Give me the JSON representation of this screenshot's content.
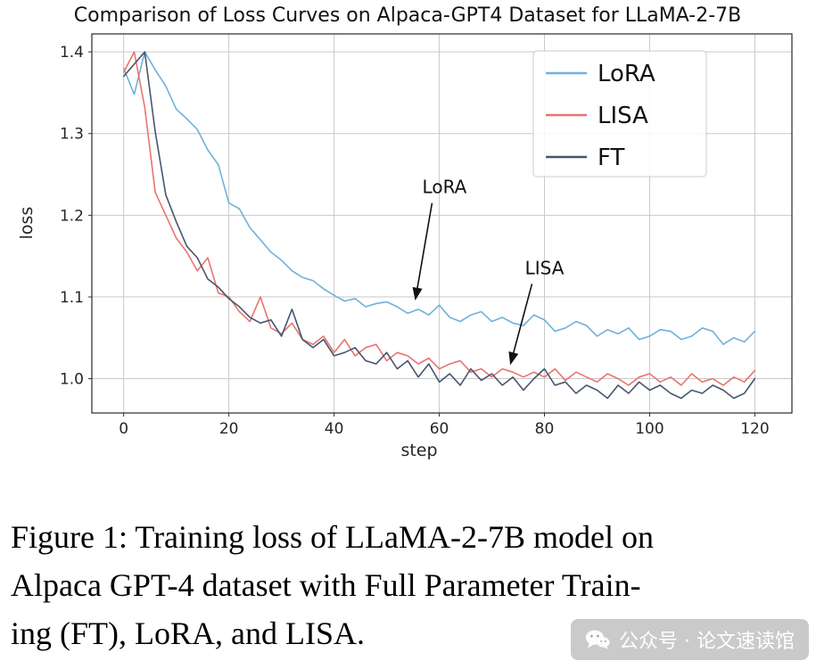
{
  "chart_data": {
    "type": "line",
    "title": "Comparison of Loss Curves on Alpaca-GPT4 Dataset for LLaMA-2-7B",
    "xlabel": "step",
    "ylabel": "loss",
    "xlim": [
      -6.05,
      127.05
    ],
    "ylim": [
      0.958,
      1.422
    ],
    "xticks": [
      0,
      20,
      40,
      60,
      80,
      100,
      120
    ],
    "yticks": [
      1.0,
      1.1,
      1.2,
      1.3,
      1.4
    ],
    "grid": true,
    "legend_position": "upper right",
    "x": [
      0,
      2,
      4,
      6,
      8,
      10,
      12,
      14,
      16,
      18,
      20,
      22,
      24,
      26,
      28,
      30,
      32,
      34,
      36,
      38,
      40,
      42,
      44,
      46,
      48,
      50,
      52,
      54,
      56,
      58,
      60,
      62,
      64,
      66,
      68,
      70,
      72,
      74,
      76,
      78,
      80,
      82,
      84,
      86,
      88,
      90,
      92,
      94,
      96,
      98,
      100,
      102,
      104,
      106,
      108,
      110,
      112,
      114,
      116,
      118,
      120
    ],
    "series": [
      {
        "name": "LoRA",
        "color": "#6fb1d9",
        "values": [
          1.38,
          1.348,
          1.4,
          1.378,
          1.358,
          1.33,
          1.318,
          1.305,
          1.28,
          1.262,
          1.215,
          1.208,
          1.185,
          1.17,
          1.155,
          1.145,
          1.132,
          1.124,
          1.12,
          1.11,
          1.102,
          1.095,
          1.098,
          1.088,
          1.092,
          1.094,
          1.088,
          1.08,
          1.085,
          1.078,
          1.09,
          1.075,
          1.07,
          1.078,
          1.082,
          1.07,
          1.075,
          1.068,
          1.065,
          1.078,
          1.072,
          1.058,
          1.062,
          1.07,
          1.065,
          1.052,
          1.06,
          1.055,
          1.062,
          1.048,
          1.052,
          1.06,
          1.058,
          1.048,
          1.052,
          1.062,
          1.058,
          1.042,
          1.05,
          1.045,
          1.058
        ]
      },
      {
        "name": "LISA",
        "color": "#e8756d",
        "values": [
          1.375,
          1.4,
          1.332,
          1.228,
          1.2,
          1.172,
          1.155,
          1.132,
          1.148,
          1.105,
          1.1,
          1.082,
          1.07,
          1.1,
          1.062,
          1.055,
          1.068,
          1.048,
          1.042,
          1.052,
          1.032,
          1.048,
          1.028,
          1.038,
          1.042,
          1.022,
          1.032,
          1.028,
          1.018,
          1.025,
          1.012,
          1.018,
          1.022,
          1.008,
          1.012,
          1.002,
          1.012,
          1.008,
          1.002,
          1.008,
          1.002,
          1.012,
          0.998,
          1.008,
          1.002,
          0.996,
          1.006,
          1.0,
          0.992,
          1.002,
          1.006,
          0.996,
          1.002,
          0.992,
          1.006,
          0.996,
          1.0,
          0.992,
          1.002,
          0.996,
          1.01
        ]
      },
      {
        "name": "FT",
        "color": "#47566e",
        "values": [
          1.37,
          1.385,
          1.4,
          1.302,
          1.225,
          1.192,
          1.162,
          1.148,
          1.122,
          1.112,
          1.098,
          1.088,
          1.075,
          1.068,
          1.072,
          1.052,
          1.085,
          1.048,
          1.038,
          1.048,
          1.028,
          1.032,
          1.038,
          1.022,
          1.018,
          1.032,
          1.012,
          1.022,
          1.002,
          1.018,
          0.996,
          1.006,
          0.992,
          1.012,
          0.998,
          1.006,
          0.992,
          1.002,
          0.986,
          1.0,
          1.012,
          0.992,
          0.996,
          0.982,
          0.992,
          0.986,
          0.976,
          0.992,
          0.982,
          0.996,
          0.986,
          0.992,
          0.982,
          0.976,
          0.986,
          0.982,
          0.992,
          0.986,
          0.976,
          0.982,
          1.0
        ]
      }
    ],
    "annotations": [
      {
        "label": "LoRA",
        "text_xy": [
          61,
          1.227
        ],
        "tip_xy": [
          55.5,
          1.095
        ]
      },
      {
        "label": "LISA",
        "text_xy": [
          80,
          1.128
        ],
        "tip_xy": [
          73.6,
          1.016
        ]
      }
    ]
  },
  "caption": {
    "lines": [
      "Figure 1: Training loss of LLaMA-2-7B model on",
      "Alpaca GPT-4 dataset with Full Parameter Train-",
      "ing (FT), LoRA, and LISA."
    ]
  },
  "watermark": {
    "text": "公众号 · 论文速读馆"
  }
}
